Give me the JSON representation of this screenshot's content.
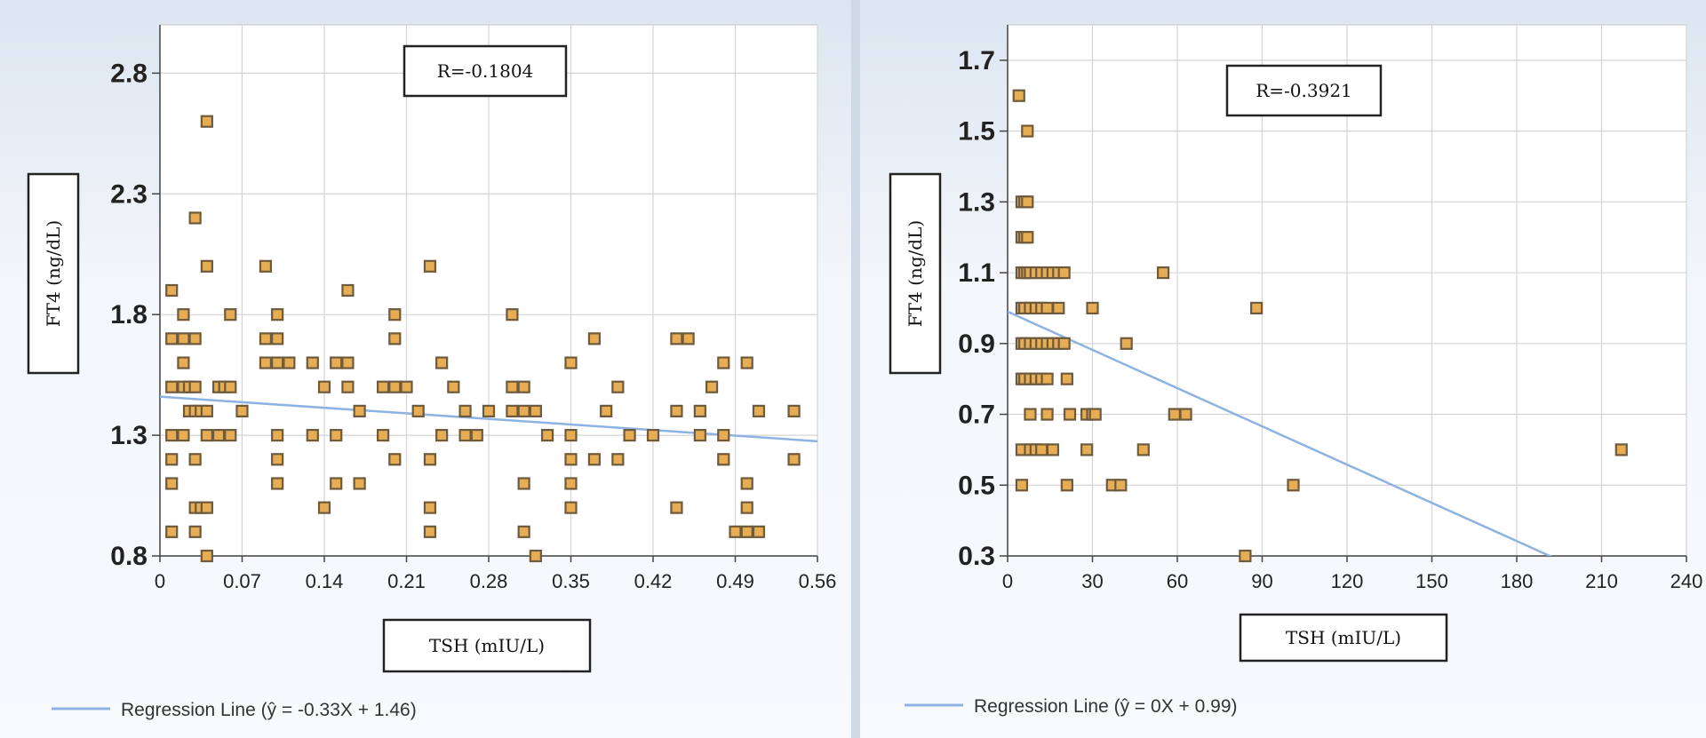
{
  "chart_data": [
    {
      "type": "scatter",
      "title": "",
      "annotation": "R=-0.1804",
      "xlabel": "TSH (mIU/L)",
      "ylabel": "FT4 (ng/dL)",
      "xlim": [
        0,
        0.56
      ],
      "ylim": [
        0.8,
        3.0
      ],
      "xticks": [
        "0",
        "0.07",
        "0.14",
        "0.21",
        "0.28",
        "0.35",
        "0.42",
        "0.49",
        "0.56"
      ],
      "yticks": [
        "0.8",
        "1.3",
        "1.8",
        "2.3",
        "2.8"
      ],
      "grid": true,
      "legend": "Regression Line (ŷ = -0.33X + 1.46)",
      "regression": {
        "slope": -0.33,
        "intercept": 1.46
      },
      "colors": {
        "marker_fill": "#e6ad55",
        "marker_edge": "#6e5a3c",
        "line": "#8db3e2"
      },
      "points": [
        [
          0.01,
          0.9
        ],
        [
          0.01,
          1.1
        ],
        [
          0.01,
          1.2
        ],
        [
          0.01,
          1.3
        ],
        [
          0.01,
          1.5
        ],
        [
          0.01,
          1.7
        ],
        [
          0.01,
          1.9
        ],
        [
          0.02,
          1.3
        ],
        [
          0.02,
          1.5
        ],
        [
          0.02,
          1.6
        ],
        [
          0.02,
          1.7
        ],
        [
          0.02,
          1.8
        ],
        [
          0.025,
          1.4
        ],
        [
          0.025,
          1.5
        ],
        [
          0.03,
          0.9
        ],
        [
          0.03,
          1.0
        ],
        [
          0.03,
          1.2
        ],
        [
          0.03,
          1.4
        ],
        [
          0.03,
          1.5
        ],
        [
          0.03,
          1.7
        ],
        [
          0.03,
          2.2
        ],
        [
          0.035,
          1.0
        ],
        [
          0.035,
          1.4
        ],
        [
          0.04,
          0.8
        ],
        [
          0.04,
          1.0
        ],
        [
          0.04,
          1.3
        ],
        [
          0.04,
          1.4
        ],
        [
          0.04,
          2.0
        ],
        [
          0.04,
          2.6
        ],
        [
          0.05,
          1.3
        ],
        [
          0.05,
          1.5
        ],
        [
          0.055,
          1.5
        ],
        [
          0.06,
          1.3
        ],
        [
          0.06,
          1.5
        ],
        [
          0.06,
          1.8
        ],
        [
          0.07,
          1.4
        ],
        [
          0.09,
          1.6
        ],
        [
          0.09,
          1.7
        ],
        [
          0.09,
          2.0
        ],
        [
          0.1,
          1.1
        ],
        [
          0.1,
          1.2
        ],
        [
          0.1,
          1.3
        ],
        [
          0.1,
          1.6
        ],
        [
          0.1,
          1.7
        ],
        [
          0.1,
          1.8
        ],
        [
          0.11,
          1.6
        ],
        [
          0.13,
          1.3
        ],
        [
          0.13,
          1.6
        ],
        [
          0.14,
          1.0
        ],
        [
          0.14,
          1.5
        ],
        [
          0.15,
          1.1
        ],
        [
          0.15,
          1.3
        ],
        [
          0.15,
          1.6
        ],
        [
          0.16,
          1.5
        ],
        [
          0.16,
          1.6
        ],
        [
          0.16,
          1.9
        ],
        [
          0.17,
          1.1
        ],
        [
          0.17,
          1.4
        ],
        [
          0.19,
          1.3
        ],
        [
          0.19,
          1.5
        ],
        [
          0.2,
          1.2
        ],
        [
          0.2,
          1.5
        ],
        [
          0.2,
          1.7
        ],
        [
          0.2,
          1.8
        ],
        [
          0.21,
          1.5
        ],
        [
          0.22,
          1.4
        ],
        [
          0.23,
          0.9
        ],
        [
          0.23,
          1.0
        ],
        [
          0.23,
          1.2
        ],
        [
          0.23,
          2.0
        ],
        [
          0.24,
          1.3
        ],
        [
          0.24,
          1.6
        ],
        [
          0.25,
          1.5
        ],
        [
          0.26,
          1.3
        ],
        [
          0.26,
          1.4
        ],
        [
          0.27,
          1.3
        ],
        [
          0.28,
          1.4
        ],
        [
          0.3,
          1.4
        ],
        [
          0.3,
          1.5
        ],
        [
          0.3,
          1.8
        ],
        [
          0.31,
          0.9
        ],
        [
          0.31,
          1.1
        ],
        [
          0.31,
          1.4
        ],
        [
          0.31,
          1.5
        ],
        [
          0.32,
          0.8
        ],
        [
          0.32,
          1.4
        ],
        [
          0.33,
          1.3
        ],
        [
          0.35,
          1.0
        ],
        [
          0.35,
          1.1
        ],
        [
          0.35,
          1.2
        ],
        [
          0.35,
          1.3
        ],
        [
          0.35,
          1.6
        ],
        [
          0.37,
          1.2
        ],
        [
          0.37,
          1.7
        ],
        [
          0.38,
          1.4
        ],
        [
          0.39,
          1.2
        ],
        [
          0.39,
          1.5
        ],
        [
          0.4,
          1.3
        ],
        [
          0.42,
          1.3
        ],
        [
          0.44,
          1.0
        ],
        [
          0.44,
          1.4
        ],
        [
          0.44,
          1.7
        ],
        [
          0.45,
          1.7
        ],
        [
          0.46,
          1.3
        ],
        [
          0.46,
          1.4
        ],
        [
          0.47,
          1.5
        ],
        [
          0.48,
          1.2
        ],
        [
          0.48,
          1.3
        ],
        [
          0.48,
          1.6
        ],
        [
          0.49,
          0.9
        ],
        [
          0.5,
          0.9
        ],
        [
          0.5,
          1.0
        ],
        [
          0.5,
          1.1
        ],
        [
          0.5,
          1.6
        ],
        [
          0.51,
          0.9
        ],
        [
          0.51,
          1.4
        ],
        [
          0.54,
          1.2
        ],
        [
          0.54,
          1.4
        ]
      ]
    },
    {
      "type": "scatter",
      "title": "",
      "annotation": "R=-0.3921",
      "xlabel": "TSH (mIU/L)",
      "ylabel": "FT4 (ng/dL)",
      "xlim": [
        0,
        240
      ],
      "ylim": [
        0.3,
        1.8
      ],
      "xticks": [
        "0",
        "30",
        "60",
        "90",
        "120",
        "150",
        "180",
        "210",
        "240"
      ],
      "yticks": [
        "0.3",
        "0.5",
        "0.7",
        "0.9",
        "1.1",
        "1.3",
        "1.5",
        "1.7"
      ],
      "grid": true,
      "legend": "Regression Line (ŷ = 0X + 0.99)",
      "regression": {
        "slope": -0.0036,
        "intercept": 0.99
      },
      "colors": {
        "marker_fill": "#e6ad55",
        "marker_edge": "#6e5a3c",
        "line": "#8db3e2"
      },
      "points": [
        [
          4,
          1.6
        ],
        [
          5,
          1.3
        ],
        [
          5,
          1.2
        ],
        [
          5,
          1.1
        ],
        [
          5,
          1.0
        ],
        [
          5,
          0.9
        ],
        [
          5,
          0.8
        ],
        [
          5,
          0.6
        ],
        [
          5,
          0.5
        ],
        [
          6,
          1.3
        ],
        [
          6,
          1.2
        ],
        [
          6,
          1.1
        ],
        [
          6,
          1.0
        ],
        [
          6,
          0.9
        ],
        [
          6,
          0.8
        ],
        [
          7,
          1.5
        ],
        [
          7,
          1.3
        ],
        [
          7,
          1.2
        ],
        [
          7,
          1.1
        ],
        [
          8,
          1.1
        ],
        [
          8,
          1.0
        ],
        [
          8,
          0.9
        ],
        [
          8,
          0.8
        ],
        [
          8,
          0.7
        ],
        [
          8,
          0.6
        ],
        [
          10,
          1.1
        ],
        [
          10,
          1.0
        ],
        [
          10,
          0.9
        ],
        [
          10,
          0.8
        ],
        [
          10,
          0.6
        ],
        [
          12,
          1.1
        ],
        [
          12,
          1.0
        ],
        [
          12,
          0.9
        ],
        [
          12,
          0.8
        ],
        [
          12,
          0.6
        ],
        [
          14,
          1.1
        ],
        [
          14,
          1.0
        ],
        [
          14,
          0.9
        ],
        [
          14,
          0.8
        ],
        [
          14,
          0.7
        ],
        [
          16,
          1.1
        ],
        [
          16,
          0.9
        ],
        [
          16,
          0.6
        ],
        [
          18,
          1.1
        ],
        [
          18,
          1.0
        ],
        [
          18,
          0.9
        ],
        [
          20,
          1.1
        ],
        [
          20,
          0.9
        ],
        [
          21,
          0.8
        ],
        [
          21,
          0.5
        ],
        [
          22,
          0.7
        ],
        [
          28,
          0.7
        ],
        [
          28,
          0.6
        ],
        [
          30,
          0.7
        ],
        [
          30,
          1.0
        ],
        [
          31,
          0.7
        ],
        [
          37,
          0.5
        ],
        [
          40,
          0.5
        ],
        [
          42,
          0.9
        ],
        [
          48,
          0.6
        ],
        [
          55,
          1.1
        ],
        [
          59,
          0.7
        ],
        [
          63,
          0.7
        ],
        [
          84,
          0.3
        ],
        [
          88,
          1.0
        ],
        [
          101,
          0.5
        ],
        [
          217,
          0.6
        ]
      ]
    }
  ]
}
